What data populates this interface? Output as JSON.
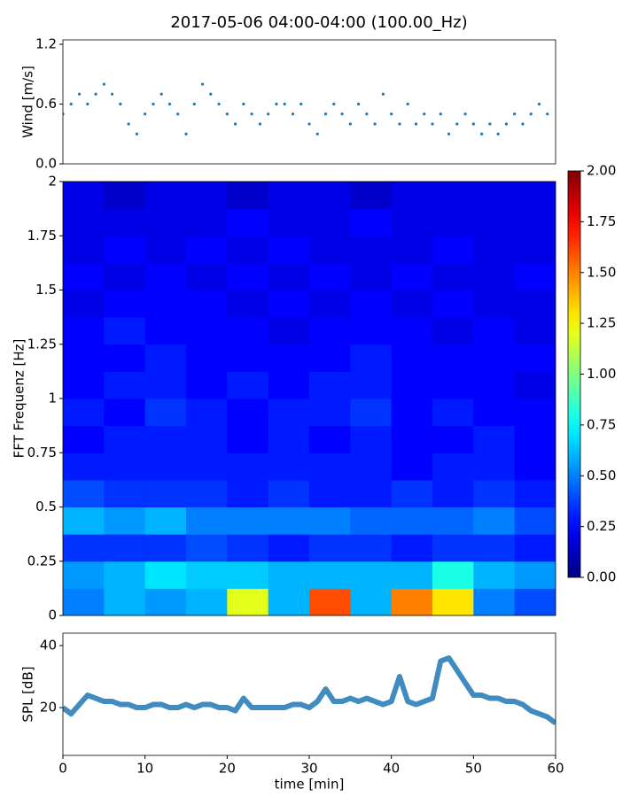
{
  "title": "2017-05-06 04:00-04:00 (100.00_Hz)",
  "chart_data": [
    {
      "type": "scatter",
      "ylabel": "Wind [m/s]",
      "color": "#1f77b4",
      "xlim": [
        0,
        60
      ],
      "ylim": [
        0,
        1.245
      ],
      "yticks": [
        {
          "value": 0,
          "label": "0.0"
        },
        0.6,
        1.2
      ],
      "x": [
        0,
        1,
        2,
        3,
        4,
        5,
        6,
        7,
        8,
        9,
        10,
        11,
        12,
        13,
        14,
        15,
        16,
        17,
        18,
        19,
        20,
        21,
        22,
        23,
        24,
        25,
        26,
        27,
        28,
        29,
        30,
        31,
        32,
        33,
        34,
        35,
        36,
        37,
        38,
        39,
        40,
        41,
        42,
        43,
        44,
        45,
        46,
        47,
        48,
        49,
        50,
        51,
        52,
        53,
        54,
        55,
        56,
        57,
        58,
        59
      ],
      "values": [
        0.5,
        0.6,
        0.7,
        0.6,
        0.7,
        0.8,
        0.7,
        0.6,
        0.4,
        0.3,
        0.5,
        0.6,
        0.7,
        0.6,
        0.5,
        0.3,
        0.6,
        0.8,
        0.7,
        0.6,
        0.5,
        0.4,
        0.6,
        0.5,
        0.4,
        0.5,
        0.6,
        0.6,
        0.5,
        0.6,
        0.4,
        0.3,
        0.5,
        0.6,
        0.5,
        0.4,
        0.6,
        0.5,
        0.4,
        0.7,
        0.5,
        0.4,
        0.6,
        0.4,
        0.5,
        0.4,
        0.5,
        0.3,
        0.4,
        0.5,
        0.4,
        0.3,
        0.4,
        0.3,
        0.4,
        0.5,
        0.4,
        0.5,
        0.6,
        0.5
      ]
    },
    {
      "type": "heatmap",
      "ylabel": "FFT Frequenz [Hz]",
      "xlim": [
        0,
        60
      ],
      "ylim": [
        0,
        2
      ],
      "yticks": [
        0,
        0.25,
        0.5,
        0.75,
        1,
        1.25,
        1.5,
        1.75,
        2
      ],
      "xbins": [
        0,
        5,
        10,
        15,
        20,
        25,
        30,
        35,
        40,
        45,
        50,
        55,
        60
      ],
      "ybins": [
        0,
        0.125,
        0.25,
        0.375,
        0.5,
        0.625,
        0.75,
        0.875,
        1,
        1.125,
        1.25,
        1.375,
        1.5,
        1.625,
        1.75,
        1.875,
        2
      ],
      "zlim": [
        0,
        2
      ],
      "colorbar_ticks": [
        {
          "value": 0,
          "label": "0.00"
        },
        {
          "value": 0.25,
          "label": "0.25"
        },
        {
          "value": 0.5,
          "label": "0.50"
        },
        {
          "value": 0.75,
          "label": "0.75"
        },
        {
          "value": 1,
          "label": "1.00"
        },
        {
          "value": 1.25,
          "label": "1.25"
        },
        {
          "value": 1.5,
          "label": "1.50"
        },
        {
          "value": 1.75,
          "label": "1.75"
        },
        {
          "value": 2,
          "label": "2.00"
        }
      ],
      "values": [
        [
          0.5,
          0.6,
          0.55,
          0.6,
          1.2,
          0.6,
          1.6,
          0.6,
          1.5,
          1.3,
          0.5,
          0.4
        ],
        [
          0.55,
          0.6,
          0.7,
          0.65,
          0.65,
          0.6,
          0.6,
          0.6,
          0.6,
          0.8,
          0.6,
          0.55
        ],
        [
          0.35,
          0.35,
          0.35,
          0.4,
          0.35,
          0.3,
          0.35,
          0.35,
          0.3,
          0.35,
          0.35,
          0.3
        ],
        [
          0.6,
          0.55,
          0.6,
          0.5,
          0.5,
          0.5,
          0.5,
          0.45,
          0.45,
          0.45,
          0.5,
          0.4
        ],
        [
          0.4,
          0.35,
          0.35,
          0.35,
          0.3,
          0.35,
          0.3,
          0.3,
          0.35,
          0.3,
          0.35,
          0.3
        ],
        [
          0.3,
          0.3,
          0.3,
          0.3,
          0.3,
          0.3,
          0.3,
          0.3,
          0.25,
          0.3,
          0.3,
          0.25
        ],
        [
          0.25,
          0.3,
          0.3,
          0.3,
          0.25,
          0.3,
          0.25,
          0.3,
          0.25,
          0.25,
          0.3,
          0.25
        ],
        [
          0.3,
          0.25,
          0.35,
          0.3,
          0.25,
          0.3,
          0.3,
          0.35,
          0.25,
          0.3,
          0.25,
          0.25
        ],
        [
          0.25,
          0.3,
          0.3,
          0.25,
          0.3,
          0.25,
          0.3,
          0.3,
          0.25,
          0.25,
          0.25,
          0.2
        ],
        [
          0.25,
          0.25,
          0.3,
          0.25,
          0.25,
          0.25,
          0.25,
          0.3,
          0.25,
          0.25,
          0.25,
          0.25
        ],
        [
          0.25,
          0.3,
          0.25,
          0.25,
          0.25,
          0.2,
          0.25,
          0.25,
          0.25,
          0.2,
          0.25,
          0.2
        ],
        [
          0.2,
          0.25,
          0.25,
          0.25,
          0.2,
          0.25,
          0.2,
          0.25,
          0.2,
          0.25,
          0.2,
          0.2
        ],
        [
          0.25,
          0.2,
          0.25,
          0.2,
          0.25,
          0.2,
          0.25,
          0.2,
          0.25,
          0.2,
          0.2,
          0.25
        ],
        [
          0.2,
          0.25,
          0.2,
          0.25,
          0.2,
          0.25,
          0.2,
          0.2,
          0.2,
          0.25,
          0.2,
          0.2
        ],
        [
          0.2,
          0.2,
          0.2,
          0.2,
          0.25,
          0.2,
          0.2,
          0.25,
          0.2,
          0.2,
          0.2,
          0.2
        ],
        [
          0.2,
          0.15,
          0.2,
          0.2,
          0.15,
          0.2,
          0.2,
          0.15,
          0.2,
          0.2,
          0.2,
          0.2
        ]
      ]
    },
    {
      "type": "line",
      "ylabel": "SPL [dB]",
      "xlabel": "time [min]",
      "color": "#1f77b4",
      "xlim": [
        0,
        60
      ],
      "xticks": [
        0,
        10,
        20,
        30,
        40,
        50,
        60
      ],
      "ylim": [
        4.6,
        44
      ],
      "yticks": [
        20,
        40
      ],
      "x": [
        0,
        1,
        2,
        3,
        4,
        5,
        6,
        7,
        8,
        9,
        10,
        11,
        12,
        13,
        14,
        15,
        16,
        17,
        18,
        19,
        20,
        21,
        22,
        23,
        24,
        25,
        26,
        27,
        28,
        29,
        30,
        31,
        32,
        33,
        34,
        35,
        36,
        37,
        38,
        39,
        40,
        41,
        42,
        43,
        44,
        45,
        46,
        47,
        48,
        49,
        50,
        51,
        52,
        53,
        54,
        55,
        56,
        57,
        58,
        59,
        60
      ],
      "values": [
        20,
        18,
        21,
        24,
        23,
        22,
        22,
        21,
        21,
        20,
        20,
        21,
        21,
        20,
        20,
        21,
        20,
        21,
        21,
        20,
        20,
        19,
        23,
        20,
        20,
        20,
        20,
        20,
        21,
        21,
        20,
        22,
        26,
        22,
        22,
        23,
        22,
        23,
        22,
        21,
        22,
        30,
        22,
        21,
        22,
        23,
        35,
        36,
        32,
        28,
        24,
        24,
        23,
        23,
        22,
        22,
        21,
        19,
        18,
        17,
        15
      ]
    }
  ]
}
